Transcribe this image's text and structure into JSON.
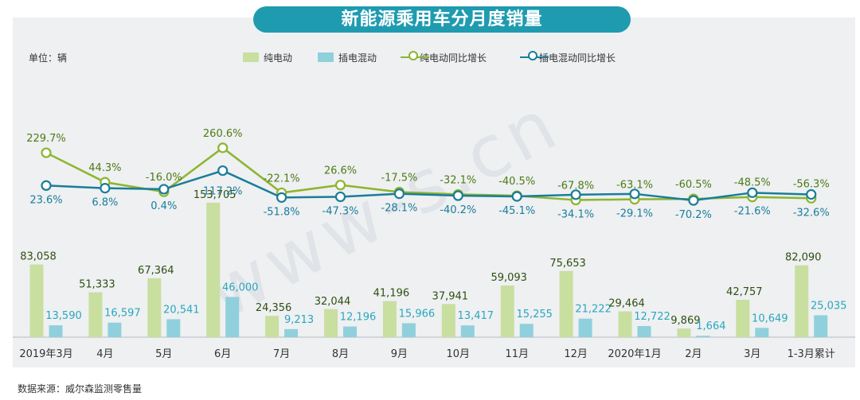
{
  "header": {
    "title": "新能源乘用车分月度销量"
  },
  "unit_label": "单位：辆",
  "source_label": "数据来源：威尔森监测零售量",
  "watermark": "www-s.cn",
  "legend": {
    "bev_bar": "纯电动",
    "phev_bar": "插电混动",
    "bev_line": "纯电动同比增长",
    "phev_line": "插电混动同比增长"
  },
  "colors": {
    "bev_bar": "#c8dfa0",
    "phev_bar": "#8fd0dc",
    "bev_line": "#8db52d",
    "phev_line": "#1a7d99",
    "bev_text": "#4e7a12",
    "phev_text": "#2aa7bd"
  },
  "chart_data": {
    "type": "bar",
    "title": "新能源乘用车分月度销量",
    "ylabel": "单位：辆",
    "categories": [
      "2019年3月",
      "4月",
      "5月",
      "6月",
      "7月",
      "8月",
      "9月",
      "10月",
      "11月",
      "12月",
      "2020年1月",
      "2月",
      "3月",
      "1-3月累计"
    ],
    "series": [
      {
        "name": "纯电动",
        "kind": "bar",
        "values": [
          83058,
          51333,
          67364,
          153705,
          24356,
          32044,
          41196,
          37941,
          59093,
          75653,
          29464,
          9869,
          42757,
          82090
        ],
        "labels": [
          "83,058",
          "51,333",
          "67,364",
          "153,705",
          "24,356",
          "32,044",
          "41,196",
          "37,941",
          "59,093",
          "75,653",
          "29,464",
          "9,869",
          "42,757",
          "82,090"
        ]
      },
      {
        "name": "插电混动",
        "kind": "bar",
        "values": [
          13590,
          16597,
          20541,
          46000,
          9213,
          12196,
          15966,
          13417,
          15255,
          21222,
          12722,
          1664,
          10649,
          25035
        ],
        "labels": [
          "13,590",
          "16,597",
          "20,541",
          "46,000",
          "9,213",
          "12,196",
          "15,966",
          "13,417",
          "15,255",
          "21,222",
          "12,722",
          "1,664",
          "10,649",
          "25,035"
        ]
      },
      {
        "name": "纯电动同比增长",
        "kind": "line",
        "values": [
          229.7,
          44.3,
          -16.0,
          260.6,
          -22.1,
          26.6,
          -17.5,
          -32.1,
          -40.5,
          -67.8,
          -63.1,
          -60.5,
          -48.5,
          -56.3
        ],
        "labels": [
          "229.7%",
          "44.3%",
          "-16.0%",
          "260.6%",
          "-22.1%",
          "26.6%",
          "-17.5%",
          "-32.1%",
          "-40.5%",
          "-67.8%",
          "-63.1%",
          "-60.5%",
          "-48.5%",
          "-56.3%"
        ]
      },
      {
        "name": "插电混动同比增长",
        "kind": "line",
        "values": [
          23.6,
          6.8,
          0.4,
          117.2,
          -51.8,
          -47.3,
          -28.1,
          -40.2,
          -45.1,
          -34.1,
          -29.1,
          -70.2,
          -21.6,
          -32.6
        ],
        "labels": [
          "23.6%",
          "6.8%",
          "0.4%",
          "117.2%",
          "-51.8%",
          "-47.3%",
          "-28.1%",
          "-40.2%",
          "-45.1%",
          "-34.1%",
          "-29.1%",
          "-70.2%",
          "-21.6%",
          "-32.6%"
        ]
      }
    ],
    "bar_ylim": [
      0,
      160000
    ],
    "line_ylim": [
      -80,
      300
    ]
  }
}
